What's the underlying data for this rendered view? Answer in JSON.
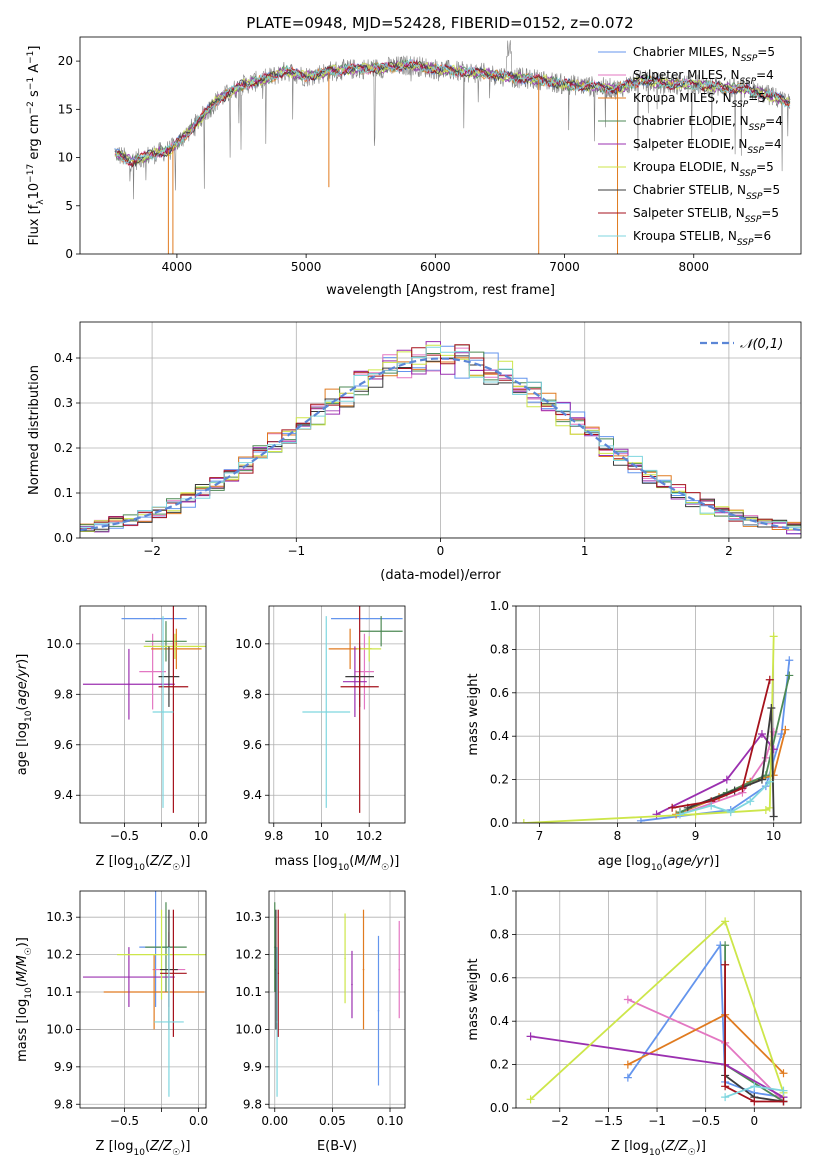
{
  "title": "PLATE=0948, MJD=52428, FIBERID=0152, z=0.072",
  "colors": {
    "chabrier_miles": "#6495ed",
    "salpeter_miles": "#e377c2",
    "kroupa_miles": "#e07b20",
    "chabrier_elodie": "#4e8a55",
    "salpeter_elodie": "#9b30b0",
    "kroupa_elodie": "#cde64a",
    "chabrier_stelib": "#3b3b3b",
    "salpeter_stelib": "#a5121c",
    "kroupa_stelib": "#7fd6df",
    "gaussian": "#5b86d6",
    "data": "#808080"
  },
  "chart_data": [
    {
      "id": "spectrum",
      "type": "line",
      "xlabel": "wavelength [Angstrom, rest frame]",
      "ylabel": "Flux [f_λ 10^-17 erg cm^-2 s^-1 A^-1]",
      "xlim": [
        3250,
        8830
      ],
      "ylim": [
        0,
        22.5
      ],
      "xticks": [
        4000,
        5000,
        6000,
        7000,
        8000
      ],
      "yticks": [
        0,
        5,
        10,
        15,
        20
      ],
      "grid": false,
      "legend_position": "top-right",
      "legend": [
        "Chabrier MILES, N_SSP=5",
        "Salpeter MILES, N_SSP=4",
        "Kroupa MILES, N_SSP=5",
        "Chabrier ELODIE, N_SSP=4",
        "Salpeter ELODIE, N_SSP=4",
        "Kroupa ELODIE, N_SSP=5",
        "Chabrier STELIB, N_SSP=5",
        "Salpeter STELIB, N_SSP=5",
        "Kroupa STELIB, N_SSP=6"
      ],
      "continuum": {
        "x": [
          3520,
          3650,
          3800,
          3950,
          4100,
          4300,
          4500,
          4700,
          4850,
          5000,
          5200,
          5400,
          5600,
          5800,
          6000,
          6200,
          6400,
          6600,
          6800,
          7000,
          7200,
          7400,
          7600,
          7800,
          8000,
          8200,
          8400,
          8600,
          8750
        ],
        "y": [
          10.5,
          9.6,
          10.3,
          10.8,
          12.8,
          15.8,
          17.5,
          18.2,
          19.0,
          18.4,
          19.0,
          19.2,
          19.3,
          19.6,
          19.2,
          18.9,
          18.7,
          18.3,
          18.1,
          17.6,
          17.4,
          17.1,
          18.0,
          17.6,
          17.6,
          17.3,
          17.1,
          16.4,
          15.6
        ]
      },
      "absorption_lines": [
        {
          "x": 3934,
          "depth": 22.0
        },
        {
          "x": 3969,
          "depth": 22.0
        },
        {
          "x": 5176,
          "depth": 12.0
        },
        {
          "x": 6800,
          "depth": 22.0
        },
        {
          "x": 7410,
          "depth": 22.0
        }
      ]
    },
    {
      "id": "residuals",
      "type": "bar",
      "xlabel": "(data-model)/error",
      "ylabel": "Normed distribution",
      "xlim": [
        -2.5,
        2.5
      ],
      "ylim": [
        0,
        0.48
      ],
      "xticks": [
        -2,
        -1,
        0,
        1,
        2
      ],
      "yticks": [
        0.0,
        0.1,
        0.2,
        0.3,
        0.4
      ],
      "grid": true,
      "legend_position": "top-right",
      "legend": [
        "𝒩(0,1)"
      ],
      "bin_width": 0.1
    },
    {
      "id": "age_vs_Z",
      "type": "scatter",
      "xlabel": "Z [log10(Z/Z☉)]",
      "ylabel": "age  [log10(age/yr)]",
      "xlim": [
        -0.8,
        0.05
      ],
      "ylim": [
        9.29,
        10.15
      ],
      "xticks": [
        -0.5,
        -0.25,
        0.0
      ],
      "xticklabels": [
        "−0.5",
        "",
        "0.0"
      ],
      "yticks": [
        9.4,
        9.6,
        9.8,
        10.0
      ],
      "grid": true,
      "points": [
        {
          "series": "Chabrier MILES",
          "x": -0.3,
          "xerr": 0.22,
          "y": 10.1,
          "yerr": 0.0
        },
        {
          "series": "Salpeter MILES",
          "x": -0.31,
          "xerr": 0.09,
          "y": 9.89,
          "yerr": 0.15
        },
        {
          "series": "Kroupa MILES",
          "x": -0.15,
          "xerr": 0.17,
          "y": 9.98,
          "yerr": 0.08
        },
        {
          "series": "Chabrier ELODIE",
          "x": -0.22,
          "xerr": 0.14,
          "y": 10.01,
          "yerr": 0.08
        },
        {
          "series": "Salpeter ELODIE",
          "x": -0.47,
          "xerr": 0.31,
          "y": 9.84,
          "yerr": 0.14
        },
        {
          "series": "Kroupa ELODIE",
          "x": -0.16,
          "xerr": 0.21,
          "y": 9.99,
          "yerr": 0.05
        },
        {
          "series": "Chabrier STELIB",
          "x": -0.2,
          "xerr": 0.07,
          "y": 9.87,
          "yerr": 0.12
        },
        {
          "series": "Salpeter STELIB",
          "x": -0.17,
          "xerr": 0.1,
          "y": 9.83,
          "yerr": 0.5
        },
        {
          "series": "Kroupa STELIB",
          "x": -0.24,
          "xerr": 0.07,
          "y": 9.73,
          "yerr": 0.38
        }
      ]
    },
    {
      "id": "age_vs_mass",
      "type": "scatter",
      "xlabel": "mass [log10(M/M☉)]",
      "ylabel": "",
      "xlim": [
        9.78,
        10.35
      ],
      "ylim": [
        9.29,
        10.15
      ],
      "xticks": [
        9.8,
        10.0,
        10.2
      ],
      "yticks": [
        9.4,
        9.6,
        9.8,
        10.0
      ],
      "grid": true,
      "points": [
        {
          "series": "Chabrier MILES",
          "x": 10.19,
          "xerr": 0.15,
          "y": 10.1,
          "yerr": 0.0
        },
        {
          "series": "Salpeter MILES",
          "x": 10.18,
          "xerr": 0.04,
          "y": 9.89,
          "yerr": 0.15
        },
        {
          "series": "Kroupa MILES",
          "x": 10.12,
          "xerr": 0.09,
          "y": 9.98,
          "yerr": 0.08
        },
        {
          "series": "Chabrier ELODIE",
          "x": 10.25,
          "xerr": 0.09,
          "y": 10.05,
          "yerr": 0.06
        },
        {
          "series": "Salpeter ELODIE",
          "x": 10.14,
          "xerr": 0.05,
          "y": 9.85,
          "yerr": 0.14
        },
        {
          "series": "Kroupa ELODIE",
          "x": 10.2,
          "xerr": 0.05,
          "y": 9.98,
          "yerr": 0.05
        },
        {
          "series": "Chabrier STELIB",
          "x": 10.16,
          "xerr": 0.06,
          "y": 9.87,
          "yerr": 0.12
        },
        {
          "series": "Salpeter STELIB",
          "x": 10.16,
          "xerr": 0.08,
          "y": 9.83,
          "yerr": 0.5
        },
        {
          "series": "Kroupa STELIB",
          "x": 10.02,
          "xerr": 0.1,
          "y": 9.73,
          "yerr": 0.38
        }
      ]
    },
    {
      "id": "weight_vs_age",
      "type": "line",
      "xlabel": "age  [log10(age/yr)]",
      "ylabel": "mass weight",
      "xlim": [
        6.7,
        10.35
      ],
      "ylim": [
        0,
        1
      ],
      "xticks": [
        7,
        8,
        9,
        10
      ],
      "yticks": [
        0.0,
        0.2,
        0.4,
        0.6,
        0.8,
        1.0
      ],
      "grid": true,
      "series": [
        {
          "name": "Chabrier MILES",
          "x": [
            8.3,
            9.45,
            9.9,
            10.1,
            10.2
          ],
          "y": [
            0.01,
            0.06,
            0.17,
            0.41,
            0.75
          ]
        },
        {
          "name": "Salpeter MILES",
          "x": [
            8.8,
            9.6,
            9.9,
            10.0
          ],
          "y": [
            0.04,
            0.14,
            0.3,
            0.42
          ]
        },
        {
          "name": "Kroupa MILES",
          "x": [
            8.75,
            9.3,
            9.7,
            10.0,
            10.15
          ],
          "y": [
            0.04,
            0.12,
            0.19,
            0.22,
            0.43
          ]
        },
        {
          "name": "Chabrier ELODIE",
          "x": [
            8.8,
            9.4,
            9.9,
            10.2
          ],
          "y": [
            0.05,
            0.14,
            0.22,
            0.68
          ]
        },
        {
          "name": "Salpeter ELODIE",
          "x": [
            8.5,
            9.4,
            9.85,
            10.0
          ],
          "y": [
            0.04,
            0.2,
            0.41,
            0.34
          ]
        },
        {
          "name": "Kroupa ELODIE",
          "x": [
            6.8,
            9.0,
            9.9,
            9.95,
            10.0
          ],
          "y": [
            0.0,
            0.04,
            0.06,
            0.07,
            0.86
          ]
        },
        {
          "name": "Chabrier STELIB",
          "x": [
            8.9,
            9.5,
            9.85,
            9.97,
            10.0
          ],
          "y": [
            0.07,
            0.15,
            0.2,
            0.53,
            0.03
          ]
        },
        {
          "name": "Salpeter STELIB",
          "x": [
            8.7,
            9.2,
            9.6,
            9.95
          ],
          "y": [
            0.07,
            0.1,
            0.16,
            0.66
          ]
        },
        {
          "name": "Kroupa STELIB",
          "x": [
            8.8,
            9.2,
            9.45,
            9.7,
            9.95
          ],
          "y": [
            0.04,
            0.08,
            0.05,
            0.1,
            0.19
          ]
        }
      ]
    },
    {
      "id": "mass_vs_Z",
      "type": "scatter",
      "xlabel": "Z [log10(Z/Z☉)]",
      "ylabel": "mass [log10(M/M☉)]",
      "xlim": [
        -0.8,
        0.05
      ],
      "ylim": [
        9.79,
        10.37
      ],
      "xticks": [
        -0.5,
        -0.25,
        0.0
      ],
      "xticklabels": [
        "−0.5",
        "",
        "0.0"
      ],
      "yticks": [
        9.8,
        9.9,
        10.0,
        10.1,
        10.2,
        10.3
      ],
      "grid": true,
      "points": [
        {
          "series": "Chabrier MILES",
          "x": -0.29,
          "xerr": 0.11,
          "y": 10.22,
          "yerr": 0.16
        },
        {
          "series": "Salpeter MILES",
          "x": -0.2,
          "xerr": 0.11,
          "y": 10.16,
          "yerr": 0.1
        },
        {
          "series": "Kroupa MILES",
          "x": -0.3,
          "xerr": 0.34,
          "y": 10.1,
          "yerr": 0.1
        },
        {
          "series": "Chabrier ELODIE",
          "x": -0.22,
          "xerr": 0.14,
          "y": 10.22,
          "yerr": 0.12
        },
        {
          "series": "Salpeter ELODIE",
          "x": -0.47,
          "xerr": 0.31,
          "y": 10.14,
          "yerr": 0.08
        },
        {
          "series": "Kroupa ELODIE",
          "x": -0.25,
          "xerr": 0.3,
          "y": 10.2,
          "yerr": 0.12
        },
        {
          "series": "Chabrier STELIB",
          "x": -0.2,
          "xerr": 0.06,
          "y": 10.16,
          "yerr": 0.16
        },
        {
          "series": "Salpeter STELIB",
          "x": -0.17,
          "xerr": 0.09,
          "y": 10.15,
          "yerr": 0.17
        },
        {
          "series": "Kroupa STELIB",
          "x": -0.2,
          "xerr": 0.1,
          "y": 10.02,
          "yerr": 0.2
        }
      ]
    },
    {
      "id": "mass_vs_ebv",
      "type": "scatter",
      "xlabel": "E(B-V)",
      "ylabel": "",
      "xlim": [
        -0.005,
        0.113
      ],
      "ylim": [
        9.79,
        10.37
      ],
      "xticks": [
        0.0,
        0.05,
        0.1
      ],
      "xticklabels": [
        "0.00",
        "0.05",
        "0.10"
      ],
      "yticks": [
        9.8,
        9.9,
        10.0,
        10.1,
        10.2,
        10.3
      ],
      "grid": true,
      "points": [
        {
          "series": "Chabrier MILES",
          "x": 0.09,
          "y": 10.05,
          "yerr": 0.2
        },
        {
          "series": "Salpeter MILES",
          "x": 0.108,
          "y": 10.16,
          "yerr": 0.13
        },
        {
          "series": "Kroupa MILES",
          "x": 0.077,
          "y": 10.16,
          "yerr": 0.16
        },
        {
          "series": "Chabrier ELODIE",
          "x": 0.0,
          "y": 10.22,
          "yerr": 0.12
        },
        {
          "series": "Salpeter ELODIE",
          "x": 0.067,
          "y": 10.12,
          "yerr": 0.09
        },
        {
          "series": "Kroupa ELODIE",
          "x": 0.061,
          "y": 10.19,
          "yerr": 0.12
        },
        {
          "series": "Chabrier STELIB",
          "x": 0.001,
          "y": 10.16,
          "yerr": 0.16
        },
        {
          "series": "Salpeter STELIB",
          "x": 0.003,
          "y": 10.15,
          "yerr": 0.17
        },
        {
          "series": "Kroupa STELIB",
          "x": 0.002,
          "y": 10.02,
          "yerr": 0.2
        }
      ]
    },
    {
      "id": "weight_vs_Z",
      "type": "line",
      "xlabel": "Z [log10(Z/Z☉)]",
      "ylabel": "mass weight",
      "xlim": [
        -2.45,
        0.48
      ],
      "ylim": [
        0,
        1
      ],
      "xticks": [
        -2.0,
        -1.5,
        -1.0,
        -0.5,
        0.0
      ],
      "yticks": [
        0.0,
        0.2,
        0.4,
        0.6,
        0.8,
        1.0
      ],
      "grid": true,
      "series": [
        {
          "name": "Chabrier MILES",
          "x": [
            -1.3,
            -0.35,
            -0.3,
            0.0,
            0.3
          ],
          "y": [
            0.14,
            0.75,
            0.12,
            0.07,
            0.05
          ]
        },
        {
          "name": "Salpeter MILES",
          "x": [
            -1.3,
            -0.3,
            0.3
          ],
          "y": [
            0.5,
            0.3,
            0.03
          ]
        },
        {
          "name": "Kroupa MILES",
          "x": [
            -1.3,
            -0.3,
            0.3
          ],
          "y": [
            0.2,
            0.43,
            0.16
          ]
        },
        {
          "name": "Chabrier ELODIE",
          "x": [
            -0.3,
            -0.3,
            0.3
          ],
          "y": [
            0.75,
            0.2,
            0.03
          ]
        },
        {
          "name": "Salpeter ELODIE",
          "x": [
            -2.3,
            -0.3,
            0.3
          ],
          "y": [
            0.33,
            0.2,
            0.05
          ]
        },
        {
          "name": "Kroupa ELODIE",
          "x": [
            -2.3,
            -0.3,
            0.3
          ],
          "y": [
            0.04,
            0.86,
            0.07
          ]
        },
        {
          "name": "Chabrier STELIB",
          "x": [
            -0.3,
            0.0,
            0.3
          ],
          "y": [
            0.15,
            0.05,
            0.03
          ]
        },
        {
          "name": "Salpeter STELIB",
          "x": [
            -0.3,
            -0.3,
            0.0,
            0.3
          ],
          "y": [
            0.66,
            0.1,
            0.03,
            0.03
          ]
        },
        {
          "name": "Kroupa STELIB",
          "x": [
            -0.3,
            0.0,
            0.3
          ],
          "y": [
            0.05,
            0.1,
            0.08
          ]
        }
      ]
    }
  ]
}
